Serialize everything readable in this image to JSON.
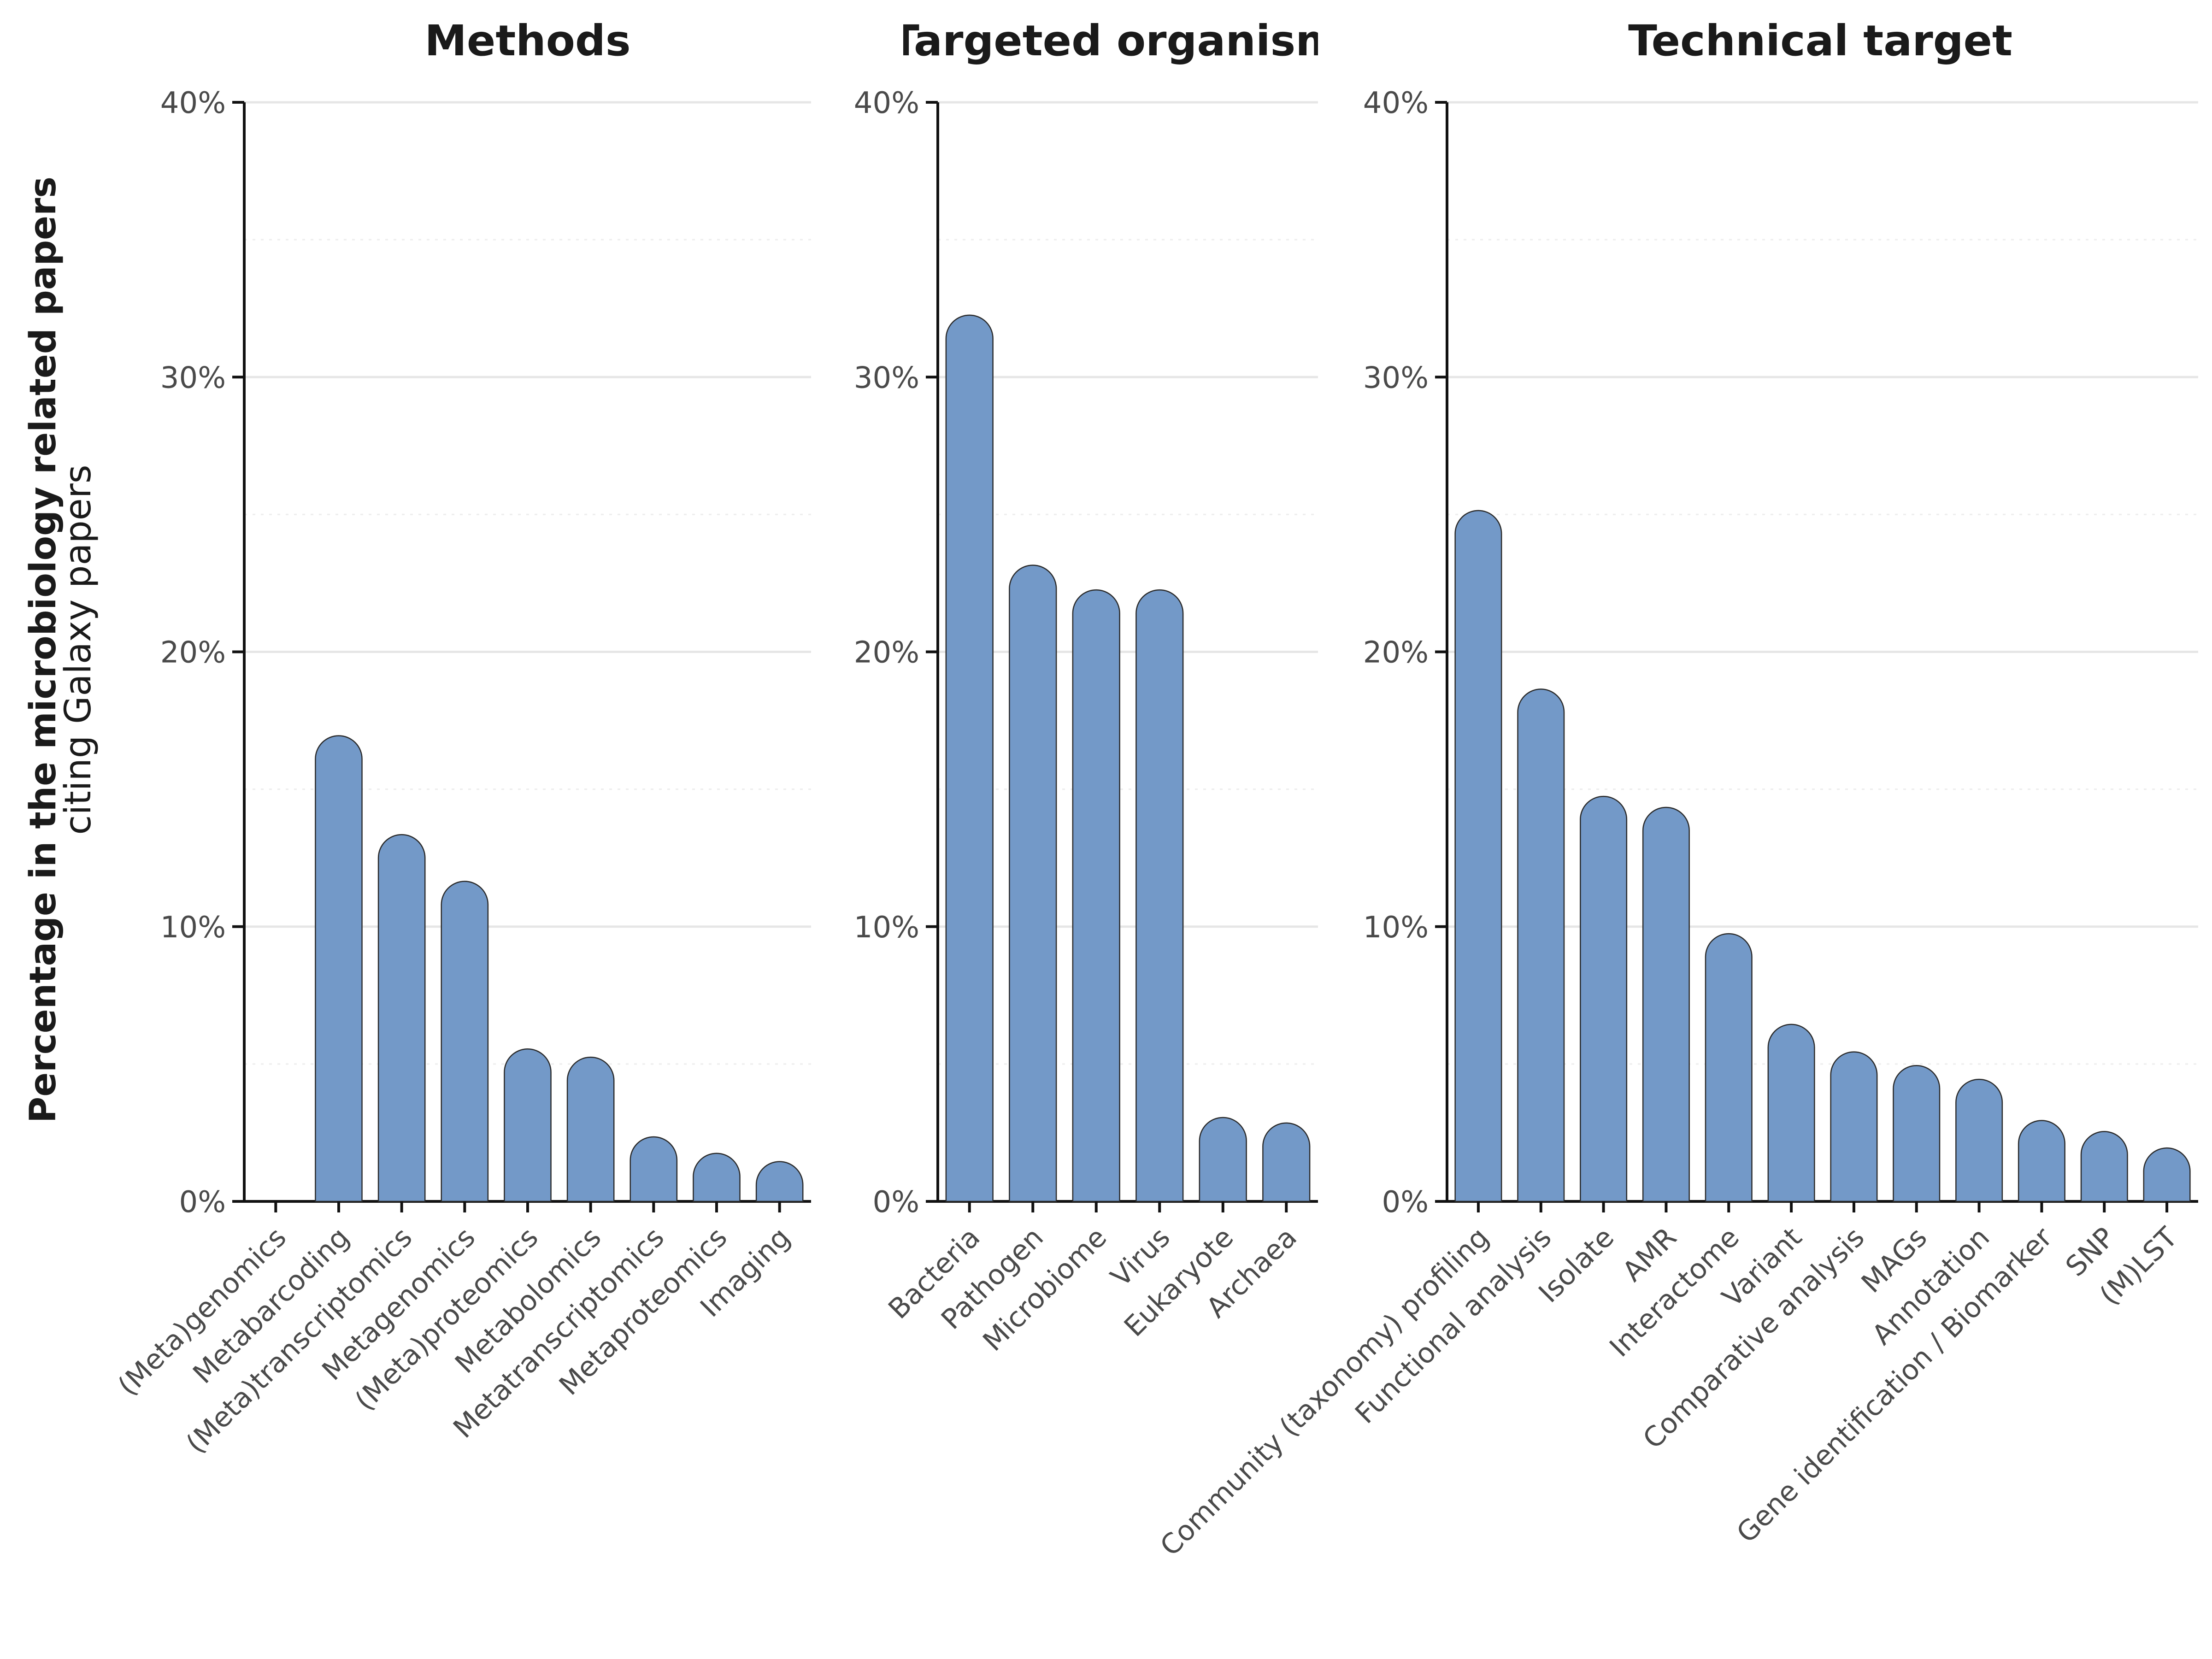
{
  "ylabel_line1": "Percentage in the microbiology related papers",
  "ylabel_line2": "citing Galaxy papers",
  "bar_color": "#7399c8",
  "bar_stroke": "#2a2a2a",
  "chart_data": [
    {
      "type": "bar",
      "title": "Methods",
      "ylim": [
        0,
        40
      ],
      "yticks": [
        "0%",
        "10%",
        "20%",
        "30%",
        "40%"
      ],
      "grid": true,
      "categories": [
        "(Meta)genomics",
        "Metabarcoding",
        "(Meta)transcriptomics",
        "Metagenomics",
        "(Meta)proteomics",
        "Metabolomics",
        "Metatranscriptomics",
        "Metaproteomics",
        "Imaging"
      ],
      "values": [
        0,
        16.1,
        12.5,
        10.8,
        4.7,
        4.4,
        1.5,
        0.9,
        0.6
      ]
    },
    {
      "type": "bar",
      "title": "Targeted organisms",
      "ylim": [
        0,
        40
      ],
      "yticks": [
        "0%",
        "10%",
        "20%",
        "30%",
        "40%"
      ],
      "grid": true,
      "categories": [
        "Bacteria",
        "Pathogen",
        "Microbiome",
        "Virus",
        "Eukaryote",
        "Archaea"
      ],
      "values": [
        31.4,
        22.3,
        21.4,
        21.4,
        2.2,
        2.0
      ]
    },
    {
      "type": "bar",
      "title": "Technical target",
      "ylim": [
        0,
        40
      ],
      "yticks": [
        "0%",
        "10%",
        "20%",
        "30%",
        "40%"
      ],
      "grid": true,
      "categories": [
        "Community (taxonomy) profiling",
        "Functional analysis",
        "Isolate",
        "AMR",
        "Interactome",
        "Variant",
        "Comparative analysis",
        "MAGs",
        "Annotation",
        "Gene identification / Biomarker",
        "SNP",
        "(M)LST"
      ],
      "values": [
        24.3,
        17.8,
        13.9,
        13.5,
        8.9,
        5.6,
        4.6,
        4.1,
        3.6,
        2.1,
        1.7,
        1.1
      ]
    }
  ]
}
